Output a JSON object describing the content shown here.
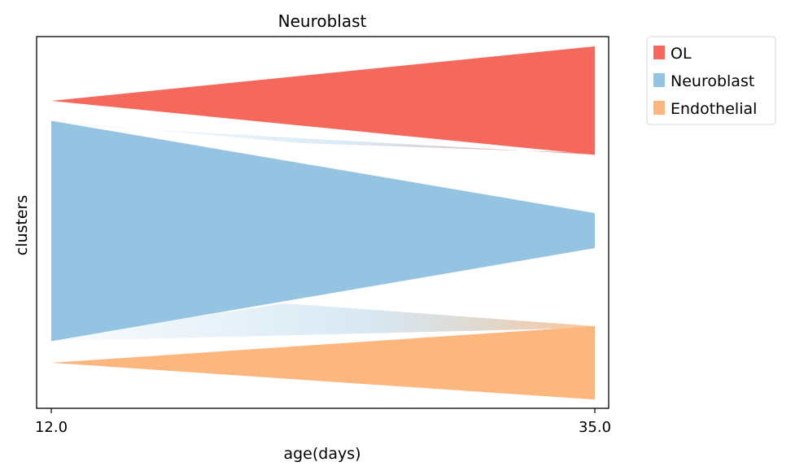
{
  "chart_data": {
    "type": "area",
    "title": "Neuroblast",
    "xlabel": "age(days)",
    "ylabel": "clusters",
    "x_ticks": [
      "12.0",
      "35.0"
    ],
    "x": [
      12.0,
      35.0
    ],
    "legend_position": "right-outside",
    "grid": false,
    "series": [
      {
        "name": "OL",
        "color": "#f4695c",
        "values": [
          0.0,
          0.31
        ]
      },
      {
        "name": "Neuroblast",
        "color": "#95c3e2",
        "values": [
          0.63,
          0.1
        ]
      },
      {
        "name": "Endothelial",
        "color": "#fcb77f",
        "values": [
          0.0,
          0.21
        ]
      }
    ],
    "transitions": [
      {
        "from": "Neuroblast",
        "to": "OL",
        "start_color": "#95c3e2",
        "end_color": "#f4695c"
      },
      {
        "from": "Neuroblast",
        "to": "Endothelial",
        "start_color": "#95c3e2",
        "end_color": "#fcb77f"
      }
    ]
  }
}
